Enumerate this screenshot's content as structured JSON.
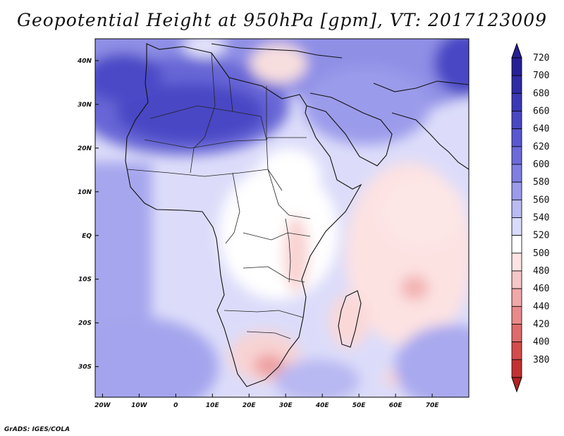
{
  "title": "Geopotential Height at 950hPa [gpm], VT: 2017123009",
  "credit": "GrADS: IGES/COLA",
  "map": {
    "lon_range": [
      -22,
      80
    ],
    "lat_range": [
      -37,
      45
    ],
    "lon_ticks": [
      {
        "value": -20,
        "label": "20W"
      },
      {
        "value": -10,
        "label": "10W"
      },
      {
        "value": 0,
        "label": "0"
      },
      {
        "value": 10,
        "label": "10E"
      },
      {
        "value": 20,
        "label": "20E"
      },
      {
        "value": 30,
        "label": "30E"
      },
      {
        "value": 40,
        "label": "40E"
      },
      {
        "value": 50,
        "label": "50E"
      },
      {
        "value": 60,
        "label": "60E"
      },
      {
        "value": 70,
        "label": "70E"
      }
    ],
    "lat_ticks": [
      {
        "value": 40,
        "label": "40N"
      },
      {
        "value": 30,
        "label": "30N"
      },
      {
        "value": 20,
        "label": "20N"
      },
      {
        "value": 10,
        "label": "10N"
      },
      {
        "value": 0,
        "label": "EQ"
      },
      {
        "value": -10,
        "label": "10S"
      },
      {
        "value": -20,
        "label": "20S"
      },
      {
        "value": -30,
        "label": "30S"
      }
    ]
  },
  "colorbar": {
    "levels": [
      {
        "label": "720",
        "color": "#262096"
      },
      {
        "label": "700",
        "color": "#2f2ba4"
      },
      {
        "label": "680",
        "color": "#3c39b6"
      },
      {
        "label": "660",
        "color": "#4a47c4"
      },
      {
        "label": "640",
        "color": "#5a58cf"
      },
      {
        "label": "620",
        "color": "#6c6bd9"
      },
      {
        "label": "600",
        "color": "#807fe2"
      },
      {
        "label": "580",
        "color": "#9b9beb"
      },
      {
        "label": "560",
        "color": "#bbbbf3"
      },
      {
        "label": "540",
        "color": "#dadafa"
      },
      {
        "label": "520",
        "color": "#ffffff"
      },
      {
        "label": "500",
        "color": "#fde4e4"
      },
      {
        "label": "480",
        "color": "#f7c6c6"
      },
      {
        "label": "460",
        "color": "#f0a8a8"
      },
      {
        "label": "440",
        "color": "#e88a8a"
      },
      {
        "label": "420",
        "color": "#de6b6b"
      },
      {
        "label": "400",
        "color": "#d24c4c"
      },
      {
        "label": "380",
        "color": "#c23131"
      }
    ],
    "end_colors": {
      "top": "#262096",
      "bottom": "#b22222"
    }
  }
}
